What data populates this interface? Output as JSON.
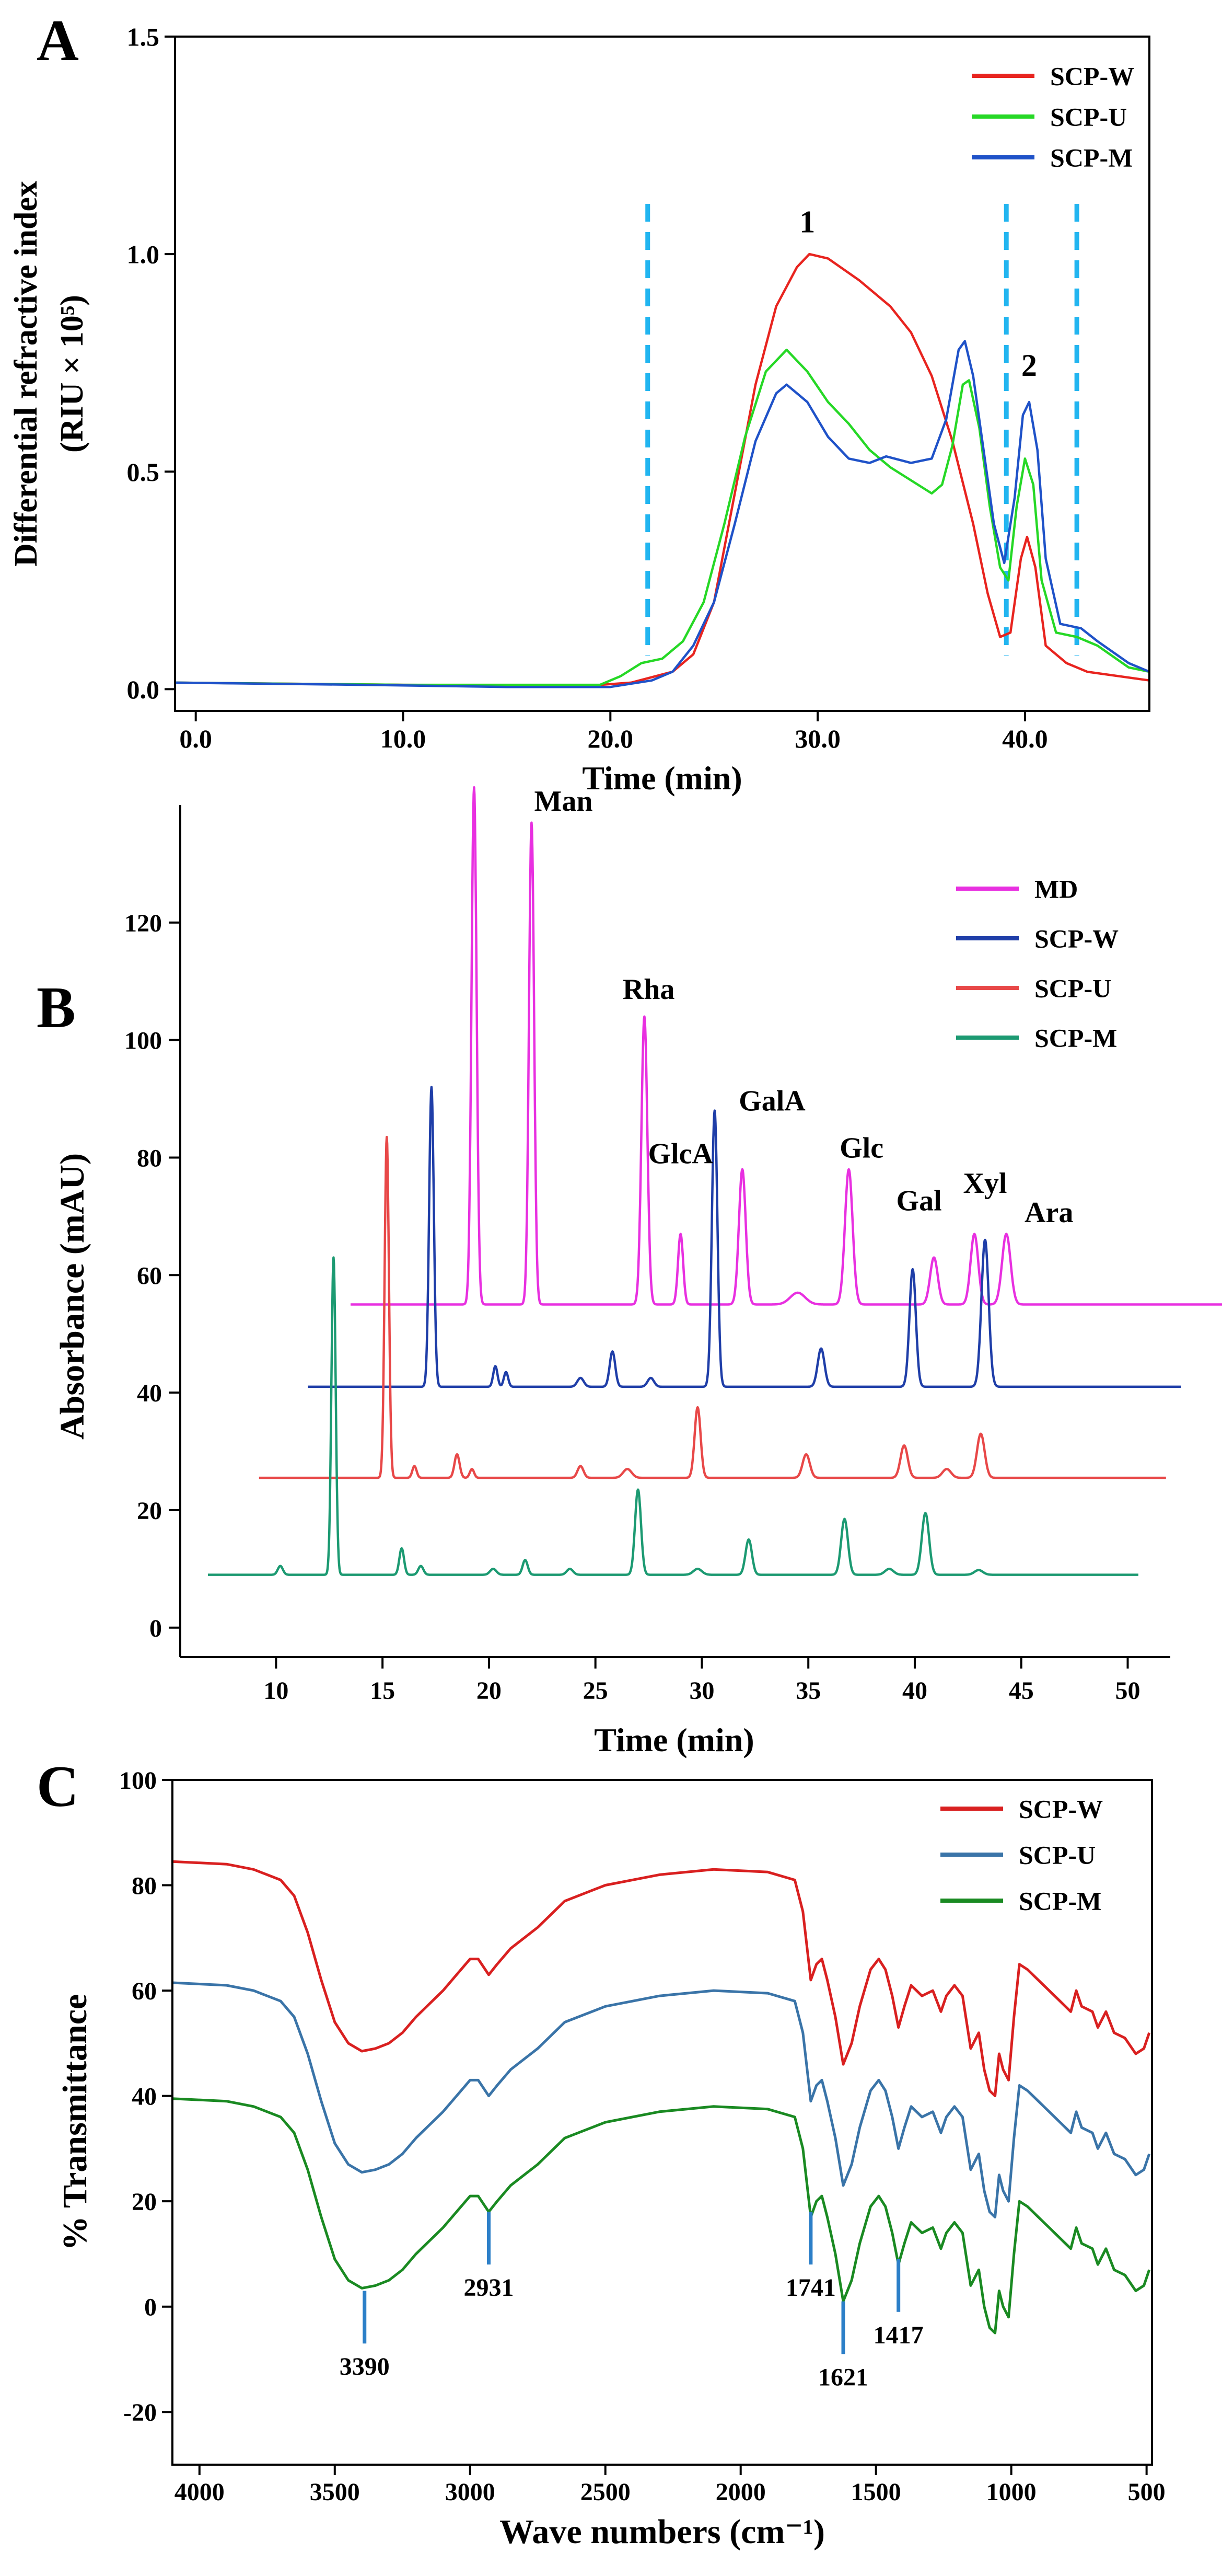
{
  "panels": [
    "A",
    "B",
    "C"
  ],
  "chart_data": [
    {
      "panel": "A",
      "type": "line",
      "xlabel": "Time (min)",
      "ylabel_line1": "Differential refractive index",
      "ylabel_line2": "(RIU × 10⁵)",
      "xlim": [
        -1,
        46
      ],
      "ylim": [
        -0.05,
        1.5
      ],
      "x_ticks": [
        0,
        10,
        20,
        30,
        40
      ],
      "x_tick_labels": [
        "0.0",
        "10.0",
        "20.0",
        "30.0",
        "40.0"
      ],
      "y_ticks": [
        0,
        0.5,
        1.0,
        1.5
      ],
      "y_tick_labels": [
        "0.0",
        "0.5",
        "1.0",
        "1.5"
      ],
      "legend_position": "top-right",
      "vlines": [
        21.8,
        39.1,
        42.5
      ],
      "vline_color": "#22b5f0",
      "annotations": [
        {
          "text": "1",
          "x": 29.5,
          "y": 1.05
        },
        {
          "text": "2",
          "x": 40.2,
          "y": 0.72
        }
      ],
      "series": [
        {
          "name": "SCP-W",
          "color": "#e8241f",
          "points": [
            [
              -1,
              0.015
            ],
            [
              10,
              0.01
            ],
            [
              19,
              0.008
            ],
            [
              21,
              0.015
            ],
            [
              23,
              0.04
            ],
            [
              24,
              0.08
            ],
            [
              25,
              0.2
            ],
            [
              26,
              0.45
            ],
            [
              27,
              0.7
            ],
            [
              28,
              0.88
            ],
            [
              29,
              0.97
            ],
            [
              29.6,
              1.0
            ],
            [
              30.5,
              0.99
            ],
            [
              32,
              0.94
            ],
            [
              33.5,
              0.88
            ],
            [
              34.5,
              0.82
            ],
            [
              35.5,
              0.72
            ],
            [
              36.5,
              0.57
            ],
            [
              37.5,
              0.38
            ],
            [
              38.2,
              0.22
            ],
            [
              38.8,
              0.12
            ],
            [
              39.3,
              0.13
            ],
            [
              39.8,
              0.3
            ],
            [
              40.1,
              0.35
            ],
            [
              40.5,
              0.28
            ],
            [
              41,
              0.1
            ],
            [
              42,
              0.06
            ],
            [
              43,
              0.04
            ],
            [
              46,
              0.02
            ]
          ]
        },
        {
          "name": "SCP-U",
          "color": "#26d826",
          "points": [
            [
              -1,
              0.015
            ],
            [
              10,
              0.01
            ],
            [
              19.5,
              0.01
            ],
            [
              20.5,
              0.03
            ],
            [
              21.5,
              0.06
            ],
            [
              22.5,
              0.07
            ],
            [
              23.5,
              0.11
            ],
            [
              24.5,
              0.2
            ],
            [
              25.5,
              0.38
            ],
            [
              26.5,
              0.58
            ],
            [
              27.5,
              0.73
            ],
            [
              28.5,
              0.78
            ],
            [
              29.5,
              0.73
            ],
            [
              30.5,
              0.66
            ],
            [
              31.5,
              0.61
            ],
            [
              32.5,
              0.55
            ],
            [
              33.5,
              0.51
            ],
            [
              34.5,
              0.48
            ],
            [
              35.5,
              0.45
            ],
            [
              36,
              0.47
            ],
            [
              36.5,
              0.56
            ],
            [
              37,
              0.7
            ],
            [
              37.3,
              0.71
            ],
            [
              37.8,
              0.6
            ],
            [
              38.3,
              0.42
            ],
            [
              38.8,
              0.28
            ],
            [
              39.2,
              0.25
            ],
            [
              39.6,
              0.42
            ],
            [
              40,
              0.53
            ],
            [
              40.4,
              0.47
            ],
            [
              40.8,
              0.25
            ],
            [
              41.5,
              0.13
            ],
            [
              42.5,
              0.12
            ],
            [
              43.5,
              0.1
            ],
            [
              45,
              0.05
            ],
            [
              46,
              0.04
            ]
          ]
        },
        {
          "name": "SCP-M",
          "color": "#1f52c8",
          "points": [
            [
              -1,
              0.015
            ],
            [
              8,
              0.01
            ],
            [
              15,
              0.005
            ],
            [
              20,
              0.005
            ],
            [
              22,
              0.02
            ],
            [
              23,
              0.04
            ],
            [
              24,
              0.1
            ],
            [
              25,
              0.2
            ],
            [
              26,
              0.38
            ],
            [
              27,
              0.57
            ],
            [
              28,
              0.68
            ],
            [
              28.5,
              0.7
            ],
            [
              29.5,
              0.66
            ],
            [
              30.5,
              0.58
            ],
            [
              31.5,
              0.53
            ],
            [
              32.5,
              0.52
            ],
            [
              33.3,
              0.535
            ],
            [
              34.5,
              0.52
            ],
            [
              35.5,
              0.53
            ],
            [
              36.2,
              0.62
            ],
            [
              36.8,
              0.78
            ],
            [
              37.1,
              0.8
            ],
            [
              37.5,
              0.72
            ],
            [
              38,
              0.55
            ],
            [
              38.5,
              0.38
            ],
            [
              39,
              0.29
            ],
            [
              39.5,
              0.44
            ],
            [
              39.9,
              0.63
            ],
            [
              40.2,
              0.66
            ],
            [
              40.6,
              0.55
            ],
            [
              41,
              0.3
            ],
            [
              41.7,
              0.15
            ],
            [
              42.7,
              0.14
            ],
            [
              43.5,
              0.11
            ],
            [
              45,
              0.06
            ],
            [
              46,
              0.04
            ]
          ]
        }
      ]
    },
    {
      "panel": "B",
      "type": "line",
      "xlabel": "Time (min)",
      "ylabel": "Absorbance (mAU)",
      "xlim": [
        5.5,
        52
      ],
      "ylim": [
        -5,
        140
      ],
      "x_ticks": [
        10,
        15,
        20,
        25,
        30,
        35,
        40,
        45,
        50
      ],
      "x_tick_labels": [
        "10",
        "15",
        "20",
        "25",
        "30",
        "35",
        "40",
        "45",
        "50"
      ],
      "y_ticks": [
        0,
        20,
        40,
        60,
        80,
        100,
        120
      ],
      "y_tick_labels": [
        "0",
        "20",
        "40",
        "60",
        "80",
        "100",
        "120"
      ],
      "legend_position": "top-right",
      "peak_labels": [
        {
          "text": "Man",
          "x": 23.5,
          "y": 139
        },
        {
          "text": "Rha",
          "x": 27.5,
          "y": 107
        },
        {
          "text": "GlcA",
          "x": 29,
          "y": 79
        },
        {
          "text": "GalA",
          "x": 33.3,
          "y": 88
        },
        {
          "text": "Glc",
          "x": 37.5,
          "y": 80
        },
        {
          "text": "Gal",
          "x": 40.2,
          "y": 71
        },
        {
          "text": "Xyl",
          "x": 43.3,
          "y": 74
        },
        {
          "text": "Ara",
          "x": 46.3,
          "y": 69
        }
      ],
      "series": [
        {
          "name": "MD",
          "color": "#e830e0",
          "baseline": 55,
          "x_range": [
            13.5,
            55
          ],
          "peaks": [
            [
              19.3,
              88,
              0.12
            ],
            [
              22,
              82,
              0.12
            ],
            [
              27.3,
              49,
              0.14
            ],
            [
              29,
              12,
              0.12
            ],
            [
              31.9,
              23,
              0.16
            ],
            [
              34.5,
              2,
              0.35
            ],
            [
              36.9,
              23,
              0.18
            ],
            [
              40.9,
              8,
              0.18
            ],
            [
              42.8,
              12,
              0.18
            ],
            [
              44.3,
              12,
              0.2
            ]
          ]
        },
        {
          "name": "SCP-W",
          "color": "#1f3ea8",
          "baseline": 41,
          "x_range": [
            11.5,
            52.5
          ],
          "peaks": [
            [
              17.3,
              51,
              0.11
            ],
            [
              20.3,
              3.5,
              0.1
            ],
            [
              20.8,
              2.5,
              0.1
            ],
            [
              24.3,
              1.5,
              0.15
            ],
            [
              25.8,
              6,
              0.13
            ],
            [
              27.6,
              1.5,
              0.15
            ],
            [
              30.6,
              47,
              0.13
            ],
            [
              35.6,
              6.5,
              0.16
            ],
            [
              39.9,
              20,
              0.15
            ],
            [
              43.3,
              25,
              0.17
            ]
          ]
        },
        {
          "name": "SCP-U",
          "color": "#e84848",
          "baseline": 25.5,
          "x_range": [
            9.2,
            51.8
          ],
          "peaks": [
            [
              15.2,
              58,
              0.1
            ],
            [
              16.5,
              2,
              0.1
            ],
            [
              18.5,
              4,
              0.12
            ],
            [
              19.2,
              1.5,
              0.1
            ],
            [
              24.3,
              2,
              0.14
            ],
            [
              26.5,
              1.5,
              0.2
            ],
            [
              29.8,
              12,
              0.14
            ],
            [
              34.9,
              4,
              0.17
            ],
            [
              39.5,
              5.5,
              0.17
            ],
            [
              41.5,
              1.5,
              0.2
            ],
            [
              43.1,
              7.5,
              0.18
            ]
          ]
        },
        {
          "name": "SCP-M",
          "color": "#1c9a72",
          "baseline": 9,
          "x_range": [
            6.8,
            50.5
          ],
          "peaks": [
            [
              10.2,
              1.5,
              0.12
            ],
            [
              12.7,
              54,
              0.1
            ],
            [
              15.9,
              4.5,
              0.11
            ],
            [
              16.8,
              1.5,
              0.12
            ],
            [
              20.2,
              1,
              0.15
            ],
            [
              21.7,
              2.5,
              0.12
            ],
            [
              23.8,
              1,
              0.15
            ],
            [
              27,
              14.5,
              0.14
            ],
            [
              29.8,
              1,
              0.2
            ],
            [
              32.2,
              6,
              0.15
            ],
            [
              36.7,
              9.5,
              0.16
            ],
            [
              38.8,
              1,
              0.2
            ],
            [
              40.5,
              10.5,
              0.17
            ],
            [
              43,
              0.8,
              0.2
            ]
          ]
        }
      ]
    },
    {
      "panel": "C",
      "type": "line",
      "xlabel": "Wave  numbers (cm⁻¹)",
      "ylabel": "% Transmittance",
      "xlim": [
        4100,
        480
      ],
      "ylim": [
        -30,
        100
      ],
      "x_ticks": [
        4000,
        3500,
        3000,
        2500,
        2000,
        1500,
        1000,
        500
      ],
      "x_tick_labels": [
        "4000",
        "3500",
        "3000",
        "2500",
        "2000",
        "1500",
        "1000",
        "500"
      ],
      "y_ticks": [
        -20,
        0,
        20,
        40,
        60,
        80,
        100
      ],
      "y_tick_labels": [
        "-20",
        "0",
        "20",
        "40",
        "60",
        "80",
        "100"
      ],
      "legend_position": "top-right",
      "marker_color": "#2c7fc8",
      "band_markers": [
        {
          "text": "3390",
          "x": 3390,
          "y_top": 3,
          "y_bottom": -7
        },
        {
          "text": "2931",
          "x": 2931,
          "y_top": 18,
          "y_bottom": 8
        },
        {
          "text": "1741",
          "x": 1741,
          "y_top": 18,
          "y_bottom": 8
        },
        {
          "text": "1621",
          "x": 1621,
          "y_top": 1,
          "y_bottom": -9
        },
        {
          "text": "1417",
          "x": 1417,
          "y_top": 9,
          "y_bottom": -1
        }
      ],
      "series": [
        {
          "name": "SCP-W",
          "color": "#d92020",
          "offset": 45
        },
        {
          "name": "SCP-U",
          "color": "#3a74a8",
          "offset": 22
        },
        {
          "name": "SCP-M",
          "color": "#1a8a22",
          "offset": 0
        }
      ],
      "base_curve": [
        [
          4100,
          39.5
        ],
        [
          3900,
          39
        ],
        [
          3800,
          38
        ],
        [
          3700,
          36
        ],
        [
          3650,
          33
        ],
        [
          3600,
          26
        ],
        [
          3550,
          17
        ],
        [
          3500,
          9
        ],
        [
          3450,
          5
        ],
        [
          3400,
          3.5
        ],
        [
          3350,
          4
        ],
        [
          3300,
          5
        ],
        [
          3250,
          7
        ],
        [
          3200,
          10
        ],
        [
          3100,
          15
        ],
        [
          3050,
          18
        ],
        [
          3000,
          21
        ],
        [
          2970,
          21
        ],
        [
          2931,
          18
        ],
        [
          2900,
          20
        ],
        [
          2850,
          23
        ],
        [
          2750,
          27
        ],
        [
          2650,
          32
        ],
        [
          2500,
          35
        ],
        [
          2300,
          37
        ],
        [
          2100,
          38
        ],
        [
          1900,
          37.5
        ],
        [
          1800,
          36
        ],
        [
          1770,
          30
        ],
        [
          1741,
          17
        ],
        [
          1720,
          20
        ],
        [
          1700,
          21
        ],
        [
          1680,
          17
        ],
        [
          1650,
          10
        ],
        [
          1621,
          1
        ],
        [
          1590,
          5
        ],
        [
          1560,
          12
        ],
        [
          1520,
          19
        ],
        [
          1490,
          21
        ],
        [
          1465,
          19
        ],
        [
          1440,
          14
        ],
        [
          1417,
          8
        ],
        [
          1395,
          12
        ],
        [
          1370,
          16
        ],
        [
          1330,
          14
        ],
        [
          1290,
          15
        ],
        [
          1260,
          11
        ],
        [
          1240,
          14
        ],
        [
          1210,
          16
        ],
        [
          1180,
          14
        ],
        [
          1150,
          4
        ],
        [
          1120,
          7
        ],
        [
          1100,
          0
        ],
        [
          1080,
          -4
        ],
        [
          1060,
          -5
        ],
        [
          1045,
          3
        ],
        [
          1030,
          0
        ],
        [
          1010,
          -2
        ],
        [
          990,
          10
        ],
        [
          970,
          20
        ],
        [
          940,
          19
        ],
        [
          900,
          17
        ],
        [
          860,
          15
        ],
        [
          820,
          13
        ],
        [
          780,
          11
        ],
        [
          760,
          15
        ],
        [
          740,
          12
        ],
        [
          700,
          11
        ],
        [
          680,
          8
        ],
        [
          650,
          11
        ],
        [
          620,
          7
        ],
        [
          580,
          6
        ],
        [
          540,
          3
        ],
        [
          510,
          4
        ],
        [
          490,
          7
        ]
      ]
    }
  ]
}
